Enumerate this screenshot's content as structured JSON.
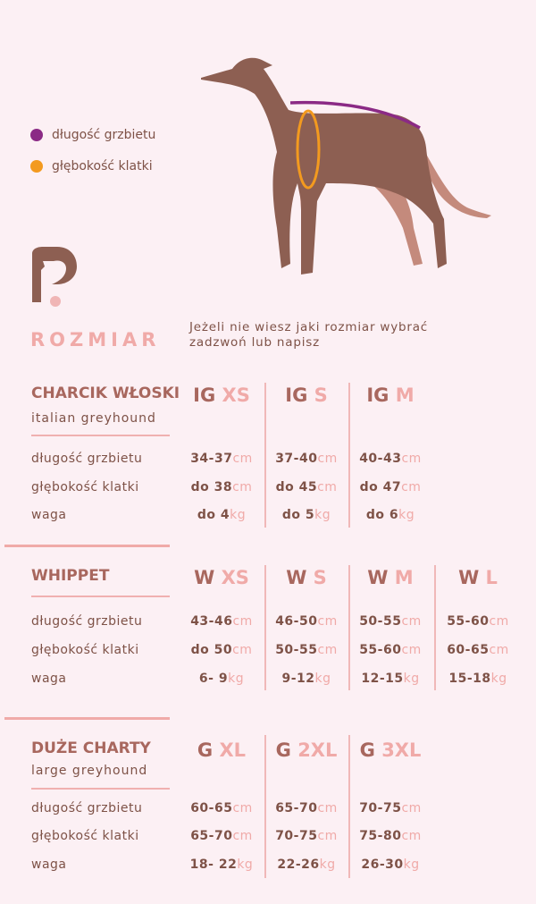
{
  "legend": [
    {
      "label": "długość grzbietu",
      "color": "#8b2a85"
    },
    {
      "label": "głębokość klatki",
      "color": "#f39a1f"
    }
  ],
  "colors": {
    "background": "#fcf0f4",
    "brown": "#7e5247",
    "heading": "#a8675e",
    "pink": "#f0aaa8",
    "dog": "#8d5f52",
    "dog_far_legs": "#c48a7c"
  },
  "logo_icon": "greyhound-p-logo",
  "title": "ROZMIAR",
  "intro": [
    "Jeżeli nie wiesz jaki rozmiar wybrać",
    "zadzwoń lub napisz"
  ],
  "row_labels": [
    "długość grzbietu",
    "głębokość klatki",
    "waga"
  ],
  "sections": [
    {
      "name": "CHARCIK WŁOSKI",
      "subtitle": "italian greyhound",
      "sizes": [
        {
          "prefix": "IG",
          "size": "XS",
          "cells": [
            [
              "34-37",
              "cm"
            ],
            [
              "do 38",
              "cm"
            ],
            [
              "do 4",
              "kg"
            ]
          ]
        },
        {
          "prefix": "IG",
          "size": "S",
          "cells": [
            [
              "37-40",
              "cm"
            ],
            [
              "do 45",
              "cm"
            ],
            [
              "do 5",
              "kg"
            ]
          ]
        },
        {
          "prefix": "IG",
          "size": "M",
          "cells": [
            [
              "40-43",
              "cm"
            ],
            [
              "do 47",
              "cm"
            ],
            [
              "do 6",
              "kg"
            ]
          ]
        }
      ]
    },
    {
      "name": "WHIPPET",
      "subtitle": "",
      "sizes": [
        {
          "prefix": "W",
          "size": "XS",
          "cells": [
            [
              "43-46",
              "cm"
            ],
            [
              "do 50",
              "cm"
            ],
            [
              "6- 9",
              "kg"
            ]
          ]
        },
        {
          "prefix": "W",
          "size": "S",
          "cells": [
            [
              "46-50",
              "cm"
            ],
            [
              "50-55",
              "cm"
            ],
            [
              "9-12",
              "kg"
            ]
          ]
        },
        {
          "prefix": "W",
          "size": "M",
          "cells": [
            [
              "50-55",
              "cm"
            ],
            [
              "55-60",
              "cm"
            ],
            [
              "12-15",
              "kg"
            ]
          ]
        },
        {
          "prefix": "W",
          "size": "L",
          "cells": [
            [
              "55-60",
              "cm"
            ],
            [
              "60-65",
              "cm"
            ],
            [
              "15-18",
              "kg"
            ]
          ]
        }
      ]
    },
    {
      "name": "DUŻE CHARTY",
      "subtitle": "large greyhound",
      "sizes": [
        {
          "prefix": "G",
          "size": "XL",
          "cells": [
            [
              "60-65",
              "cm"
            ],
            [
              "65-70",
              "cm"
            ],
            [
              "18- 22",
              "kg"
            ]
          ]
        },
        {
          "prefix": "G",
          "size": "2XL",
          "cells": [
            [
              "65-70",
              "cm"
            ],
            [
              "70-75",
              "cm"
            ],
            [
              "22-26",
              "kg"
            ]
          ]
        },
        {
          "prefix": "G",
          "size": "3XL",
          "cells": [
            [
              "70-75",
              "cm"
            ],
            [
              "75-80",
              "cm"
            ],
            [
              "26-30",
              "kg"
            ]
          ]
        }
      ]
    }
  ]
}
